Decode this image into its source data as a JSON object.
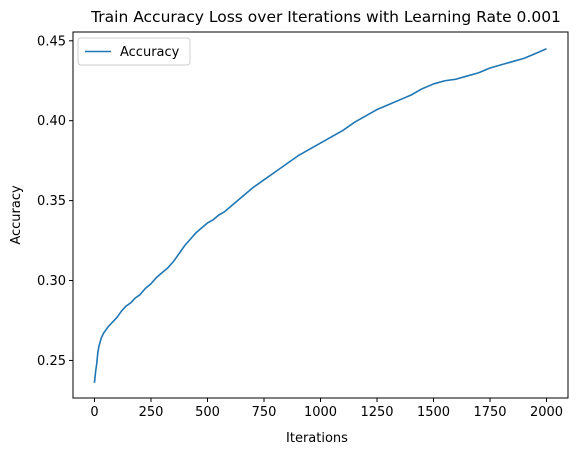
{
  "chart_data": {
    "type": "line",
    "title": "Train Accuracy Loss over Iterations with Learning Rate 0.001",
    "xlabel": "Iterations",
    "ylabel": "Accuracy",
    "xlim": [
      -95,
      2095
    ],
    "ylim": [
      0.2265,
      0.4555
    ],
    "xticks": [
      0,
      250,
      500,
      750,
      1000,
      1250,
      1500,
      1750,
      2000
    ],
    "xtick_labels": [
      "0",
      "250",
      "500",
      "750",
      "1000",
      "1250",
      "1500",
      "1750",
      "2000"
    ],
    "yticks": [
      0.25,
      0.3,
      0.35,
      0.4,
      0.45
    ],
    "ytick_labels": [
      "0.25",
      "0.30",
      "0.35",
      "0.40",
      "0.45"
    ],
    "grid": false,
    "legend_position": "top-left",
    "series": [
      {
        "name": "Accuracy",
        "color": "#1f77b4",
        "x": [
          0,
          5,
          10,
          15,
          20,
          30,
          40,
          50,
          60,
          80,
          100,
          120,
          140,
          160,
          180,
          200,
          225,
          250,
          275,
          300,
          325,
          350,
          375,
          400,
          425,
          450,
          475,
          500,
          525,
          550,
          575,
          600,
          650,
          700,
          750,
          800,
          850,
          900,
          950,
          1000,
          1050,
          1100,
          1150,
          1200,
          1250,
          1300,
          1350,
          1400,
          1450,
          1500,
          1550,
          1600,
          1650,
          1700,
          1750,
          1800,
          1850,
          1900,
          1950,
          2000
        ],
        "y": [
          0.236,
          0.243,
          0.248,
          0.255,
          0.259,
          0.264,
          0.267,
          0.269,
          0.271,
          0.274,
          0.277,
          0.281,
          0.284,
          0.286,
          0.289,
          0.291,
          0.295,
          0.298,
          0.302,
          0.305,
          0.308,
          0.312,
          0.317,
          0.322,
          0.326,
          0.33,
          0.333,
          0.336,
          0.338,
          0.341,
          0.343,
          0.346,
          0.352,
          0.358,
          0.363,
          0.368,
          0.373,
          0.378,
          0.382,
          0.386,
          0.39,
          0.394,
          0.399,
          0.403,
          0.407,
          0.41,
          0.413,
          0.416,
          0.42,
          0.423,
          0.425,
          0.426,
          0.428,
          0.43,
          0.433,
          0.435,
          0.437,
          0.439,
          0.442,
          0.445
        ]
      }
    ]
  }
}
